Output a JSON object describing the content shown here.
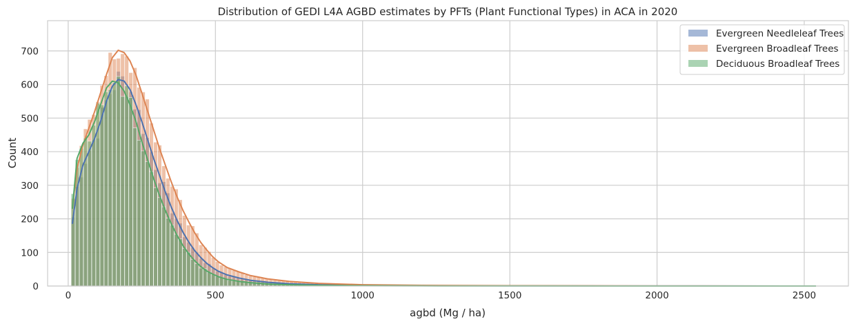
{
  "chart_data": {
    "type": "histogram",
    "title": "Distribution of GEDI L4A AGBD estimates by PFTs (Plant Functional Types) in ACA in 2020",
    "xlabel": "agbd (Mg / ha)",
    "ylabel": "Count",
    "xlim": [
      -70,
      2650
    ],
    "ylim": [
      0,
      790
    ],
    "xticks": [
      0,
      500,
      1000,
      1500,
      2000,
      2500
    ],
    "yticks": [
      0,
      100,
      200,
      300,
      400,
      500,
      600,
      700
    ],
    "grid": true,
    "legend_position": "top-right",
    "bin_width": 14,
    "bin_start": 10,
    "kde": true,
    "series": [
      {
        "name": "Evergreen Needleleaf Trees",
        "color": "#4c72b0",
        "kde_points": [
          [
            14,
            185
          ],
          [
            30,
            290
          ],
          [
            50,
            360
          ],
          [
            70,
            400
          ],
          [
            90,
            440
          ],
          [
            110,
            490
          ],
          [
            130,
            550
          ],
          [
            150,
            595
          ],
          [
            170,
            615
          ],
          [
            190,
            610
          ],
          [
            210,
            585
          ],
          [
            230,
            540
          ],
          [
            250,
            490
          ],
          [
            270,
            435
          ],
          [
            290,
            380
          ],
          [
            310,
            330
          ],
          [
            330,
            280
          ],
          [
            350,
            235
          ],
          [
            370,
            195
          ],
          [
            390,
            160
          ],
          [
            410,
            130
          ],
          [
            430,
            105
          ],
          [
            450,
            85
          ],
          [
            470,
            68
          ],
          [
            490,
            55
          ],
          [
            510,
            44
          ],
          [
            540,
            33
          ],
          [
            580,
            24
          ],
          [
            620,
            17
          ],
          [
            680,
            11
          ],
          [
            750,
            7
          ],
          [
            850,
            4
          ],
          [
            1000,
            2
          ],
          [
            1200,
            1
          ],
          [
            1500,
            0.5
          ],
          [
            2000,
            0.2
          ],
          [
            2540,
            0
          ]
        ]
      },
      {
        "name": "Evergreen Broadleaf Trees",
        "color": "#dd8452",
        "kde_points": [
          [
            14,
            230
          ],
          [
            30,
            350
          ],
          [
            50,
            420
          ],
          [
            70,
            470
          ],
          [
            90,
            520
          ],
          [
            110,
            575
          ],
          [
            130,
            630
          ],
          [
            150,
            680
          ],
          [
            170,
            702
          ],
          [
            190,
            695
          ],
          [
            210,
            670
          ],
          [
            230,
            628
          ],
          [
            250,
            575
          ],
          [
            270,
            520
          ],
          [
            290,
            465
          ],
          [
            310,
            410
          ],
          [
            330,
            360
          ],
          [
            350,
            310
          ],
          [
            370,
            265
          ],
          [
            390,
            225
          ],
          [
            410,
            190
          ],
          [
            430,
            158
          ],
          [
            450,
            130
          ],
          [
            470,
            108
          ],
          [
            490,
            88
          ],
          [
            510,
            72
          ],
          [
            540,
            55
          ],
          [
            580,
            42
          ],
          [
            620,
            31
          ],
          [
            680,
            21
          ],
          [
            750,
            14
          ],
          [
            850,
            8
          ],
          [
            1000,
            4
          ],
          [
            1200,
            2
          ],
          [
            1500,
            1
          ],
          [
            2000,
            0.3
          ],
          [
            2540,
            0
          ]
        ]
      },
      {
        "name": "Deciduous Broadleaf Trees",
        "color": "#55a868",
        "kde_points": [
          [
            14,
            230
          ],
          [
            30,
            380
          ],
          [
            50,
            425
          ],
          [
            70,
            450
          ],
          [
            90,
            490
          ],
          [
            110,
            540
          ],
          [
            130,
            590
          ],
          [
            150,
            610
          ],
          [
            170,
            605
          ],
          [
            190,
            580
          ],
          [
            210,
            540
          ],
          [
            230,
            490
          ],
          [
            250,
            430
          ],
          [
            270,
            375
          ],
          [
            290,
            320
          ],
          [
            310,
            270
          ],
          [
            330,
            225
          ],
          [
            350,
            185
          ],
          [
            370,
            150
          ],
          [
            390,
            120
          ],
          [
            410,
            95
          ],
          [
            430,
            75
          ],
          [
            450,
            58
          ],
          [
            470,
            45
          ],
          [
            490,
            36
          ],
          [
            510,
            28
          ],
          [
            540,
            20
          ],
          [
            580,
            14
          ],
          [
            620,
            10
          ],
          [
            680,
            6
          ],
          [
            750,
            4
          ],
          [
            850,
            2
          ],
          [
            1000,
            1
          ],
          [
            1200,
            0.5
          ],
          [
            1500,
            0.2
          ],
          [
            2000,
            0.1
          ],
          [
            2540,
            0
          ]
        ]
      }
    ]
  }
}
